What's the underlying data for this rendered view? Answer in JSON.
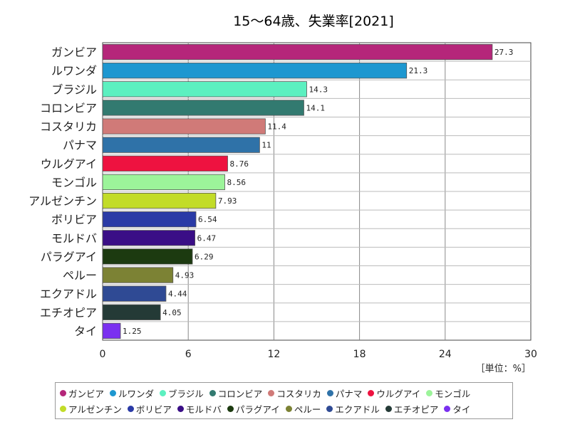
{
  "chart_data": {
    "type": "bar",
    "orientation": "horizontal",
    "title": "15～64歳、失業率[2021]",
    "unit_label": "［単位：%］",
    "xlim": [
      0,
      30
    ],
    "xticks": [
      "0",
      "6",
      "12",
      "18",
      "24",
      "30"
    ],
    "grid": true,
    "legend_position": "bottom",
    "categories": [
      "ガンビア",
      "ルワンダ",
      "ブラジル",
      "コロンビア",
      "コスタリカ",
      "パナマ",
      "ウルグアイ",
      "モンゴル",
      "アルゼンチン",
      "ボリビア",
      "モルドバ",
      "パラグアイ",
      "ペルー",
      "エクアドル",
      "エチオピア",
      "タイ"
    ],
    "values": [
      27.3,
      21.3,
      14.3,
      14.1,
      11.4,
      11,
      8.76,
      8.56,
      7.93,
      6.54,
      6.47,
      6.29,
      4.93,
      4.44,
      4.05,
      1.25
    ],
    "value_labels": [
      "27.3",
      "21.3",
      "14.3",
      "14.1",
      "11.4",
      "11",
      "8.76",
      "8.56",
      "7.93",
      "6.54",
      "6.47",
      "6.29",
      "4.93",
      "4.44",
      "4.05",
      "1.25"
    ],
    "colors": [
      "#b5267a",
      "#1d97d0",
      "#5cf0c0",
      "#327a70",
      "#d07a78",
      "#2f72a8",
      "#ee1240",
      "#9cf49a",
      "#c2dc28",
      "#2a3aa6",
      "#3a0e86",
      "#1c3a10",
      "#7c8234",
      "#2f4a94",
      "#243a36",
      "#7a30f0"
    ]
  }
}
